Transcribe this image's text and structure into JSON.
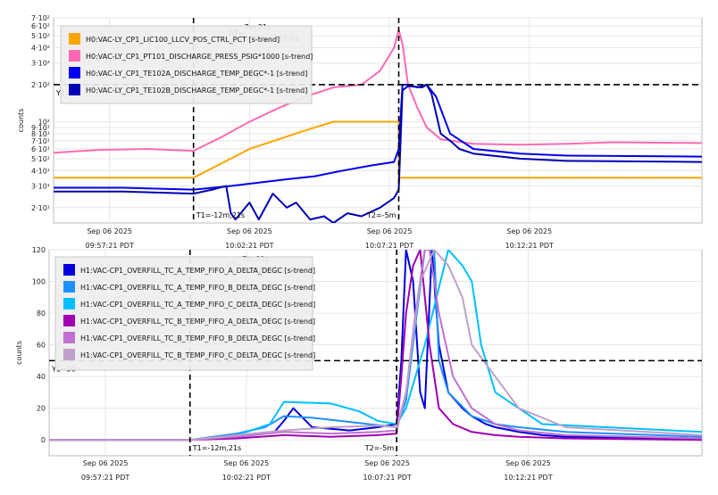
{
  "chart_data": [
    {
      "type": "line",
      "ylabel": "counts",
      "yscale": "log",
      "ylim": [
        15,
        700
      ],
      "xlim": [
        0,
        1390
      ],
      "time_unit_note": "x in seconds after Sep 06 2025 09:55:21 PDT",
      "ytick_labels": [
        {
          "v": 700,
          "label": "7·10²"
        },
        {
          "v": 600,
          "label": "6·10²"
        },
        {
          "v": 500,
          "label": "5·10²"
        },
        {
          "v": 400,
          "label": "4·10²"
        },
        {
          "v": 300,
          "label": "3·10²"
        },
        {
          "v": 200,
          "label": "2·10²"
        },
        {
          "v": 100,
          "label": "10²"
        },
        {
          "v": 90,
          "label": "9·10¹"
        },
        {
          "v": 80,
          "label": "8·10¹"
        },
        {
          "v": 70,
          "label": "7·10¹"
        },
        {
          "v": 60,
          "label": "6·10¹"
        },
        {
          "v": 50,
          "label": "5·10¹"
        },
        {
          "v": 40,
          "label": "4·10¹"
        },
        {
          "v": 30,
          "label": "3·10¹"
        },
        {
          "v": 20,
          "label": "2·10¹"
        }
      ],
      "xticks": [
        {
          "v": 120,
          "line1": "Sep 06 2025",
          "line2": "09:57:21 PDT"
        },
        {
          "v": 420,
          "line1": "Sep 06 2025",
          "line2": "10:02:21 PDT"
        },
        {
          "v": 720,
          "line1": "Sep 06 2025",
          "line2": "10:07:21 PDT"
        },
        {
          "v": 1020,
          "line1": "Sep 06 2025",
          "line2": "10:12:21 PDT"
        }
      ],
      "legend": {
        "placement": "top-left",
        "entries": [
          {
            "name": "H0:VAC-LY_CP1_LIC100_LLCV_POS_CTRL_PCT [s-trend]",
            "color": "#ffa500"
          },
          {
            "name": "H0:VAC-LY_CP1_PT101_DISCHARGE_PRESS_PSIG*1000 [s-trend]",
            "color": "#ff69b4"
          },
          {
            "name": "H0:VAC-LY_CP1_TE102A_DISCHARGE_TEMP_DEGC*-1 [s-trend]",
            "color": "#0000ee"
          },
          {
            "name": "H0:VAC-LY_CP1_TE102B_DISCHARGE_TEMP_DEGC*-1 [s-trend]",
            "color": "#0000b4"
          }
        ]
      },
      "cursors": {
        "t1": 300,
        "t2": 740,
        "t1_label": "T1=-12m,21s",
        "t2_label": "T2=-5m",
        "y1": 200,
        "y1_label": "Y1="
      },
      "delta": {
        "prefix": "ΔT=",
        "dt": "7m,21s",
        "freq": "0.00226757 Hz"
      },
      "series": [
        {
          "name": "H0:VAC-LY_CP1_LIC100_LLCV_POS_CTRL_PCT [s-trend]",
          "color": "#ffa500",
          "x": [
            0,
            300,
            300,
            420,
            540,
            600,
            660,
            740,
            740,
            760,
            1390
          ],
          "y": [
            35,
            35,
            35,
            60,
            85,
            100,
            100,
            100,
            35,
            35,
            35
          ]
        },
        {
          "name": "H0:VAC-LY_CP1_PT101_DISCHARGE_PRESS_PSIG*1000 [s-trend]",
          "color": "#ff69b4",
          "x": [
            0,
            100,
            200,
            300,
            360,
            420,
            480,
            540,
            600,
            660,
            700,
            730,
            740,
            748,
            760,
            780,
            800,
            830,
            900,
            1000,
            1100,
            1200,
            1390
          ],
          "y": [
            56,
            59,
            60,
            58,
            75,
            100,
            128,
            160,
            190,
            200,
            260,
            400,
            560,
            430,
            200,
            130,
            90,
            72,
            66,
            65,
            66,
            68,
            67
          ]
        },
        {
          "name": "H0:VAC-LY_CP1_TE102A_DISCHARGE_TEMP_DEGC*-1 [s-trend]",
          "color": "#0000ee",
          "x": [
            0,
            150,
            300,
            380,
            440,
            500,
            560,
            620,
            680,
            730,
            740,
            748,
            760,
            780,
            800,
            820,
            850,
            900,
            1000,
            1100,
            1390
          ],
          "y": [
            29,
            29,
            28,
            30,
            32,
            34,
            36,
            40,
            44,
            47,
            60,
            200,
            200,
            190,
            200,
            160,
            80,
            60,
            55,
            53,
            52
          ]
        },
        {
          "name": "H0:VAC-LY_CP1_TE102B_DISCHARGE_TEMP_DEGC*-1 [s-trend]",
          "color": "#0000b4",
          "x": [
            0,
            150,
            300,
            340,
            370,
            380,
            390,
            420,
            440,
            470,
            500,
            520,
            550,
            580,
            600,
            630,
            660,
            700,
            730,
            740,
            748,
            760,
            790,
            800,
            810,
            830,
            850,
            870,
            900,
            1000,
            1100,
            1390
          ],
          "y": [
            27,
            27,
            26,
            28,
            30,
            18,
            16,
            22,
            16,
            26,
            20,
            22,
            16,
            17,
            15,
            18,
            17,
            20,
            24,
            28,
            180,
            195,
            190,
            200,
            170,
            80,
            70,
            60,
            55,
            50,
            48,
            47
          ]
        }
      ]
    },
    {
      "type": "line",
      "ylabel": "counts",
      "ylim": [
        -10,
        120
      ],
      "xlim": [
        0,
        1390
      ],
      "yticks": [
        0,
        20,
        40,
        60,
        80,
        100,
        120
      ],
      "xticks": [
        {
          "v": 120,
          "line1": "Sep 06 2025",
          "line2": "09:57:21 PDT"
        },
        {
          "v": 420,
          "line1": "Sep 06 2025",
          "line2": "10:02:21 PDT"
        },
        {
          "v": 720,
          "line1": "Sep 06 2025",
          "line2": "10:07:21 PDT"
        },
        {
          "v": 1020,
          "line1": "Sep 06 2025",
          "line2": "10:12:21 PDT"
        }
      ],
      "legend": {
        "placement": "top-left",
        "entries": [
          {
            "name": "H1:VAC-CP1_OVERFILL_TC_A_TEMP_FIFO_A_DELTA_DEGC [s-trend]",
            "color": "#0000dd"
          },
          {
            "name": "H1:VAC-CP1_OVERFILL_TC_A_TEMP_FIFO_B_DELTA_DEGC [s-trend]",
            "color": "#1e90ff"
          },
          {
            "name": "H1:VAC-CP1_OVERFILL_TC_A_TEMP_FIFO_C_DELTA_DEGC [s-trend]",
            "color": "#00bfff"
          },
          {
            "name": "H1:VAC-CP1_OVERFILL_TC_B_TEMP_FIFO_A_DELTA_DEGC [s-trend]",
            "color": "#a000b0"
          },
          {
            "name": "H1:VAC-CP1_OVERFILL_TC_B_TEMP_FIFO_B_DELTA_DEGC [s-trend]",
            "color": "#c070d0"
          },
          {
            "name": "H1:VAC-CP1_OVERFILL_TC_B_TEMP_FIFO_C_DELTA_DEGC [s-trend]",
            "color": "#c0a0c8"
          }
        ]
      },
      "cursors": {
        "t1": 300,
        "t2": 740,
        "t1_label": "T1=-12m,21s",
        "t2_label": "T2=-5m",
        "y1": 50,
        "y1_label": "Y1=50"
      },
      "delta": {
        "prefix": "ΔT=",
        "dt": "7m,21s",
        "freq": "0.00226757 Hz"
      },
      "series": [
        {
          "name": "H1:VAC-CP1_OVERFILL_TC_A_TEMP_FIFO_A_DELTA_DEGC [s-trend]",
          "color": "#0000dd",
          "x": [
            0,
            300,
            400,
            480,
            500,
            520,
            560,
            640,
            700,
            740,
            750,
            760,
            775,
            790,
            800,
            815,
            830,
            850,
            880,
            900,
            930,
            950,
            1000,
            1050,
            1100,
            1390
          ],
          "y": [
            0,
            0,
            2,
            5,
            12,
            20,
            8,
            6,
            8,
            10,
            50,
            120,
            100,
            30,
            20,
            120,
            60,
            30,
            20,
            15,
            10,
            8,
            5,
            3,
            2,
            1
          ]
        },
        {
          "name": "H1:VAC-CP1_OVERFILL_TC_A_TEMP_FIFO_B_DELTA_DEGC [s-trend]",
          "color": "#1e90ff",
          "x": [
            0,
            300,
            400,
            460,
            500,
            560,
            620,
            680,
            740,
            760,
            800,
            820,
            830,
            850,
            900,
            950,
            1000,
            1100,
            1390
          ],
          "y": [
            0,
            0,
            4,
            8,
            15,
            14,
            12,
            10,
            8,
            25,
            120,
            120,
            50,
            30,
            15,
            10,
            8,
            5,
            2
          ]
        },
        {
          "name": "H1:VAC-CP1_OVERFILL_TC_A_TEMP_FIFO_C_DELTA_DEGC [s-trend]",
          "color": "#00bfff",
          "x": [
            0,
            300,
            400,
            470,
            500,
            600,
            660,
            700,
            740,
            760,
            800,
            850,
            880,
            900,
            920,
            950,
            1000,
            1050,
            1390
          ],
          "y": [
            0,
            0,
            3,
            10,
            24,
            23,
            18,
            12,
            10,
            20,
            60,
            120,
            110,
            100,
            60,
            30,
            20,
            10,
            5
          ]
        },
        {
          "name": "H1:VAC-CP1_OVERFILL_TC_B_TEMP_FIFO_A_DELTA_DEGC [s-trend]",
          "color": "#a000b0",
          "x": [
            0,
            300,
            400,
            500,
            600,
            700,
            740,
            750,
            760,
            775,
            790,
            810,
            830,
            860,
            900,
            950,
            1000,
            1100,
            1390
          ],
          "y": [
            0,
            0,
            1,
            3,
            2,
            3,
            4,
            40,
            80,
            110,
            120,
            60,
            20,
            10,
            5,
            3,
            2,
            1,
            0
          ]
        },
        {
          "name": "H1:VAC-CP1_OVERFILL_TC_B_TEMP_FIFO_B_DELTA_DEGC [s-trend]",
          "color": "#c070d0",
          "x": [
            0,
            300,
            400,
            500,
            600,
            700,
            740,
            760,
            780,
            800,
            810,
            830,
            860,
            900,
            950,
            1000,
            1100,
            1390
          ],
          "y": [
            0,
            0,
            2,
            5,
            4,
            5,
            6,
            30,
            80,
            120,
            120,
            80,
            40,
            20,
            10,
            6,
            3,
            1
          ]
        },
        {
          "name": "H1:VAC-CP1_OVERFILL_TC_B_TEMP_FIFO_C_DELTA_DEGC [s-trend]",
          "color": "#c0a0c8",
          "x": [
            0,
            300,
            400,
            500,
            600,
            700,
            740,
            760,
            790,
            820,
            850,
            880,
            900,
            950,
            1000,
            1100,
            1390
          ],
          "y": [
            0,
            0,
            3,
            6,
            8,
            9,
            8,
            30,
            100,
            120,
            110,
            90,
            60,
            40,
            20,
            8,
            3
          ]
        }
      ]
    }
  ]
}
